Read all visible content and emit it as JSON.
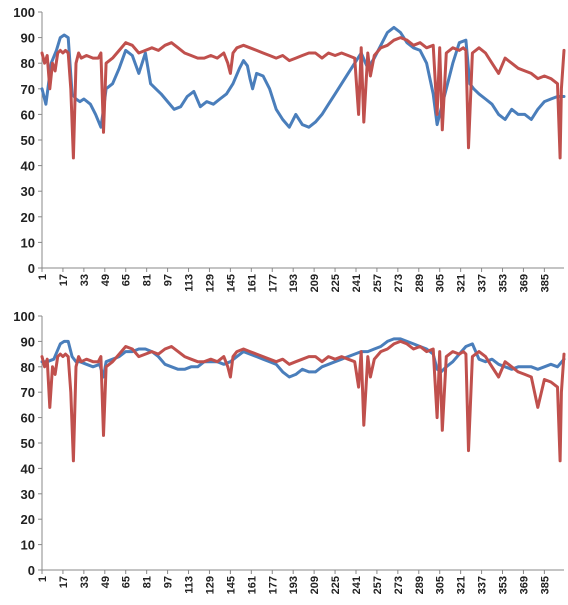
{
  "chart_data": [
    {
      "type": "line",
      "title": "",
      "xlabel": "",
      "ylabel": "",
      "ylim": [
        0,
        100
      ],
      "xlim": [
        1,
        400
      ],
      "y_ticks": [
        "0",
        "10",
        "20",
        "30",
        "40",
        "50",
        "60",
        "70",
        "80",
        "90",
        "100"
      ],
      "x_ticks": [
        "1",
        "17",
        "33",
        "49",
        "65",
        "81",
        "97",
        "113",
        "129",
        "145",
        "161",
        "177",
        "193",
        "209",
        "225",
        "241",
        "257",
        "273",
        "289",
        "305",
        "321",
        "337",
        "353",
        "369",
        "385"
      ],
      "grid": false,
      "legend": "none",
      "series": [
        {
          "color": "#4a7ebb",
          "x": [
            1,
            4,
            8,
            12,
            15,
            18,
            21,
            24,
            27,
            30,
            33,
            38,
            42,
            46,
            48,
            50,
            55,
            60,
            65,
            70,
            75,
            80,
            84,
            88,
            92,
            97,
            102,
            107,
            112,
            117,
            122,
            127,
            132,
            137,
            142,
            147,
            152,
            155,
            158,
            160,
            162,
            165,
            170,
            175,
            180,
            185,
            190,
            195,
            200,
            205,
            210,
            215,
            220,
            225,
            230,
            235,
            240,
            245,
            250,
            255,
            260,
            265,
            270,
            275,
            280,
            285,
            290,
            295,
            300,
            303,
            306,
            310,
            315,
            320,
            325,
            328,
            331,
            335,
            340,
            345,
            350,
            355,
            360,
            365,
            370,
            375,
            380,
            385,
            390,
            395,
            400
          ],
          "values": [
            70,
            64,
            80,
            85,
            90,
            91,
            90,
            68,
            66,
            65,
            66,
            64,
            60,
            55,
            62,
            70,
            72,
            78,
            85,
            83,
            76,
            84,
            72,
            70,
            68,
            65,
            62,
            63,
            67,
            69,
            63,
            65,
            64,
            66,
            68,
            72,
            78,
            81,
            79,
            74,
            70,
            76,
            75,
            70,
            62,
            58,
            55,
            60,
            56,
            55,
            57,
            60,
            64,
            68,
            72,
            76,
            80,
            84,
            78,
            82,
            87,
            92,
            94,
            92,
            88,
            86,
            85,
            80,
            68,
            56,
            62,
            70,
            80,
            88,
            89,
            72,
            70,
            68,
            66,
            64,
            60,
            58,
            62,
            60,
            60,
            58,
            62,
            65,
            66,
            67,
            67
          ]
        },
        {
          "color": "#c0504d",
          "x": [
            1,
            3,
            5,
            7,
            9,
            11,
            13,
            15,
            17,
            19,
            21,
            23,
            25,
            27,
            29,
            31,
            35,
            40,
            44,
            46,
            48,
            50,
            55,
            60,
            65,
            70,
            75,
            80,
            85,
            90,
            95,
            100,
            105,
            110,
            115,
            120,
            125,
            130,
            135,
            140,
            143,
            145,
            147,
            150,
            155,
            160,
            165,
            170,
            175,
            180,
            185,
            190,
            195,
            200,
            205,
            210,
            215,
            220,
            225,
            230,
            235,
            240,
            243,
            245,
            247,
            250,
            252,
            255,
            260,
            265,
            270,
            275,
            280,
            285,
            290,
            295,
            300,
            303,
            305,
            307,
            310,
            315,
            320,
            323,
            325,
            327,
            330,
            335,
            340,
            345,
            350,
            355,
            360,
            365,
            370,
            375,
            380,
            385,
            390,
            395,
            397,
            398,
            400
          ],
          "values": [
            84,
            80,
            83,
            70,
            80,
            77,
            84,
            85,
            84,
            85,
            84,
            70,
            43,
            80,
            84,
            82,
            83,
            82,
            82,
            84,
            53,
            80,
            82,
            85,
            88,
            87,
            84,
            85,
            86,
            85,
            87,
            88,
            86,
            84,
            83,
            82,
            82,
            83,
            82,
            84,
            80,
            76,
            84,
            86,
            87,
            86,
            85,
            84,
            83,
            82,
            83,
            81,
            82,
            83,
            84,
            84,
            82,
            84,
            83,
            84,
            83,
            82,
            60,
            86,
            57,
            84,
            75,
            83,
            86,
            87,
            89,
            90,
            89,
            87,
            88,
            86,
            87,
            60,
            86,
            54,
            84,
            86,
            85,
            86,
            85,
            47,
            84,
            86,
            84,
            80,
            76,
            82,
            80,
            78,
            77,
            76,
            74,
            75,
            74,
            72,
            43,
            70,
            85
          ]
        }
      ]
    },
    {
      "type": "line",
      "title": "",
      "xlabel": "",
      "ylabel": "",
      "ylim": [
        0,
        100
      ],
      "xlim": [
        1,
        400
      ],
      "y_ticks": [
        "0",
        "10",
        "20",
        "30",
        "40",
        "50",
        "60",
        "70",
        "80",
        "90",
        "100"
      ],
      "x_ticks": [
        "1",
        "17",
        "33",
        "49",
        "65",
        "81",
        "97",
        "113",
        "129",
        "145",
        "161",
        "177",
        "193",
        "209",
        "225",
        "241",
        "257",
        "273",
        "289",
        "305",
        "321",
        "337",
        "353",
        "369",
        "385"
      ],
      "grid": false,
      "legend": "none",
      "series": [
        {
          "color": "#4a7ebb",
          "x": [
            1,
            5,
            10,
            15,
            18,
            21,
            24,
            27,
            30,
            35,
            40,
            45,
            48,
            50,
            55,
            60,
            65,
            70,
            75,
            80,
            85,
            90,
            95,
            100,
            105,
            110,
            115,
            120,
            125,
            130,
            135,
            140,
            145,
            150,
            155,
            160,
            165,
            170,
            175,
            180,
            185,
            190,
            195,
            200,
            205,
            210,
            215,
            220,
            225,
            230,
            235,
            240,
            245,
            250,
            255,
            260,
            265,
            270,
            275,
            280,
            285,
            290,
            295,
            300,
            303,
            306,
            310,
            315,
            320,
            325,
            330,
            335,
            340,
            345,
            350,
            355,
            360,
            365,
            370,
            375,
            380,
            385,
            390,
            395,
            400
          ],
          "values": [
            82,
            82,
            83,
            89,
            90,
            90,
            84,
            82,
            82,
            81,
            80,
            81,
            76,
            82,
            83,
            84,
            86,
            86,
            87,
            87,
            86,
            84,
            81,
            80,
            79,
            79,
            80,
            80,
            82,
            82,
            82,
            81,
            82,
            84,
            86,
            85,
            84,
            83,
            82,
            81,
            78,
            76,
            77,
            79,
            78,
            78,
            80,
            81,
            82,
            83,
            84,
            85,
            86,
            86,
            87,
            88,
            90,
            91,
            91,
            90,
            89,
            88,
            87,
            85,
            79,
            78,
            80,
            82,
            85,
            88,
            89,
            83,
            82,
            83,
            81,
            80,
            79,
            80,
            80,
            80,
            79,
            80,
            81,
            80,
            83
          ]
        },
        {
          "color": "#c0504d",
          "x": [
            1,
            3,
            5,
            7,
            9,
            11,
            13,
            15,
            17,
            19,
            21,
            23,
            25,
            27,
            29,
            31,
            35,
            40,
            44,
            46,
            48,
            50,
            55,
            60,
            65,
            70,
            75,
            80,
            85,
            90,
            95,
            100,
            105,
            110,
            115,
            120,
            125,
            130,
            135,
            140,
            143,
            145,
            147,
            150,
            155,
            160,
            165,
            170,
            175,
            180,
            185,
            190,
            195,
            200,
            205,
            210,
            215,
            220,
            225,
            230,
            235,
            240,
            243,
            245,
            247,
            250,
            252,
            255,
            260,
            265,
            270,
            275,
            280,
            285,
            290,
            295,
            300,
            303,
            305,
            307,
            310,
            315,
            320,
            323,
            325,
            327,
            330,
            335,
            340,
            345,
            350,
            355,
            360,
            365,
            370,
            375,
            380,
            385,
            390,
            395,
            397,
            398,
            400
          ],
          "values": [
            84,
            80,
            83,
            64,
            80,
            77,
            84,
            85,
            84,
            85,
            84,
            70,
            43,
            80,
            84,
            82,
            83,
            82,
            82,
            84,
            53,
            80,
            82,
            85,
            88,
            87,
            84,
            85,
            86,
            85,
            87,
            88,
            86,
            84,
            83,
            82,
            82,
            83,
            82,
            84,
            80,
            76,
            84,
            86,
            87,
            86,
            85,
            84,
            83,
            82,
            83,
            81,
            82,
            83,
            84,
            84,
            82,
            84,
            83,
            84,
            83,
            82,
            72,
            86,
            57,
            84,
            76,
            83,
            86,
            87,
            89,
            90,
            89,
            87,
            88,
            86,
            87,
            60,
            86,
            55,
            84,
            86,
            85,
            86,
            85,
            47,
            84,
            86,
            84,
            80,
            76,
            82,
            80,
            78,
            77,
            76,
            64,
            75,
            74,
            72,
            43,
            70,
            85
          ]
        }
      ]
    }
  ]
}
